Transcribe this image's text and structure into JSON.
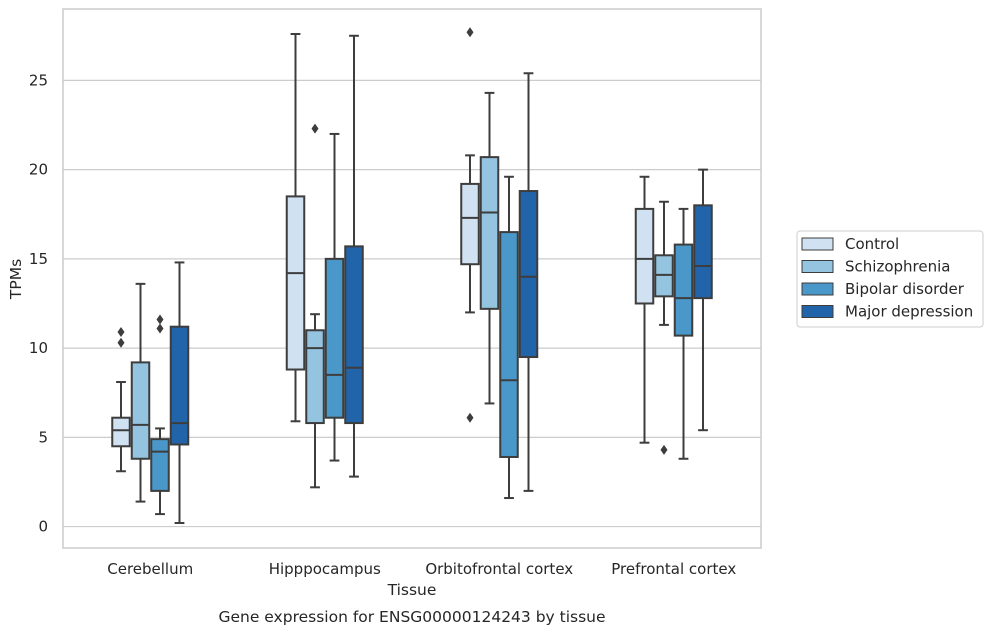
{
  "chart_data": {
    "type": "box",
    "title": "Gene expression for ENSG00000124243 by tissue",
    "xlabel": "Tissue",
    "ylabel": "TPMs",
    "ylim": [
      -1.2,
      29
    ],
    "yticks": [
      0,
      5,
      10,
      15,
      20,
      25
    ],
    "grid": "horizontal",
    "legend_position": "right",
    "categories": [
      "Cerebellum",
      "Hipppocampus",
      "Orbitofrontal cortex",
      "Prefrontal cortex"
    ],
    "series": [
      {
        "name": "Control",
        "color": "#d0e1f2",
        "boxes": [
          {
            "whisker_low": 3.1,
            "q1": 4.5,
            "median": 5.4,
            "q3": 6.1,
            "whisker_high": 8.1,
            "outliers": [
              10.3,
              10.9
            ]
          },
          {
            "whisker_low": 5.9,
            "q1": 8.8,
            "median": 14.2,
            "q3": 18.5,
            "whisker_high": 27.6,
            "outliers": []
          },
          {
            "whisker_low": 12.0,
            "q1": 14.7,
            "median": 17.3,
            "q3": 19.2,
            "whisker_high": 20.8,
            "outliers": [
              6.1,
              27.7
            ]
          },
          {
            "whisker_low": 4.7,
            "q1": 12.5,
            "median": 15.0,
            "q3": 17.8,
            "whisker_high": 19.6,
            "outliers": []
          }
        ]
      },
      {
        "name": "Schizophrenia",
        "color": "#94c4df",
        "boxes": [
          {
            "whisker_low": 1.4,
            "q1": 3.8,
            "median": 5.7,
            "q3": 9.2,
            "whisker_high": 13.6,
            "outliers": []
          },
          {
            "whisker_low": 2.2,
            "q1": 5.8,
            "median": 10.0,
            "q3": 11.0,
            "whisker_high": 11.9,
            "outliers": [
              22.3
            ]
          },
          {
            "whisker_low": 6.9,
            "q1": 12.2,
            "median": 17.6,
            "q3": 20.7,
            "whisker_high": 24.3,
            "outliers": []
          },
          {
            "whisker_low": 11.3,
            "q1": 12.9,
            "median": 14.1,
            "q3": 15.2,
            "whisker_high": 18.2,
            "outliers": [
              4.3
            ]
          }
        ]
      },
      {
        "name": "Bipolar disorder",
        "color": "#4a98c9",
        "boxes": [
          {
            "whisker_low": 0.7,
            "q1": 2.0,
            "median": 4.2,
            "q3": 4.9,
            "whisker_high": 5.5,
            "outliers": [
              11.1,
              11.6
            ]
          },
          {
            "whisker_low": 3.7,
            "q1": 6.1,
            "median": 8.5,
            "q3": 15.0,
            "whisker_high": 22.0,
            "outliers": []
          },
          {
            "whisker_low": 1.6,
            "q1": 3.9,
            "median": 8.2,
            "q3": 16.5,
            "whisker_high": 19.6,
            "outliers": []
          },
          {
            "whisker_low": 3.8,
            "q1": 10.7,
            "median": 12.8,
            "q3": 15.8,
            "whisker_high": 17.8,
            "outliers": []
          }
        ]
      },
      {
        "name": "Major depression",
        "color": "#2264aa",
        "boxes": [
          {
            "whisker_low": 0.2,
            "q1": 4.6,
            "median": 5.8,
            "q3": 11.2,
            "whisker_high": 14.8,
            "outliers": []
          },
          {
            "whisker_low": 2.8,
            "q1": 5.8,
            "median": 8.9,
            "q3": 15.7,
            "whisker_high": 27.5,
            "outliers": []
          },
          {
            "whisker_low": 2.0,
            "q1": 9.5,
            "median": 14.0,
            "q3": 18.8,
            "whisker_high": 25.4,
            "outliers": []
          },
          {
            "whisker_low": 5.4,
            "q1": 12.8,
            "median": 14.6,
            "q3": 18.0,
            "whisker_high": 20.0,
            "outliers": []
          }
        ]
      }
    ]
  }
}
